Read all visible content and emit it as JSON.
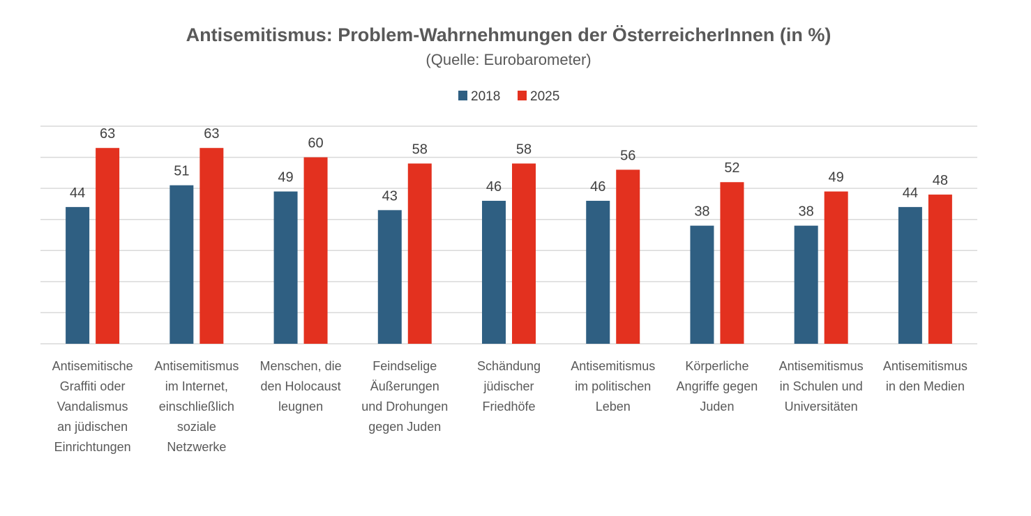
{
  "chart_data": {
    "type": "bar",
    "title": "Antisemitismus: Problem-Wahrnehmungen der ÖsterreicherInnen (in %)",
    "subtitle": "(Quelle: Eurobarometer)",
    "xlabel": "",
    "ylabel": "",
    "ylim": [
      0,
      70
    ],
    "grid": true,
    "grid_step": 10,
    "legend_position": "top",
    "categories": [
      [
        "Antisemitische",
        "Graffiti oder",
        "Vandalismus",
        "an jüdischen",
        "Einrichtungen"
      ],
      [
        "Antisemitismus",
        "im Internet,",
        "einschließlich",
        "soziale",
        "Netzwerke"
      ],
      [
        "Menschen, die",
        "den Holocaust",
        "leugnen"
      ],
      [
        "Feindselige",
        "Äußerungen",
        "und Drohungen",
        "gegen Juden"
      ],
      [
        "Schändung",
        "jüdischer",
        "Friedhöfe"
      ],
      [
        "Antisemitismus",
        "im politischen",
        "Leben"
      ],
      [
        "Körperliche",
        "Angriffe gegen",
        "Juden"
      ],
      [
        "Antisemitismus",
        "in Schulen und",
        "Universitäten"
      ],
      [
        "Antisemitismus",
        "in den Medien"
      ]
    ],
    "series": [
      {
        "name": "2018",
        "color": "#2f5f82",
        "values": [
          44,
          51,
          49,
          43,
          46,
          46,
          38,
          38,
          44
        ]
      },
      {
        "name": "2025",
        "color": "#e3311f",
        "values": [
          63,
          63,
          60,
          58,
          58,
          56,
          52,
          49,
          48
        ]
      }
    ]
  }
}
